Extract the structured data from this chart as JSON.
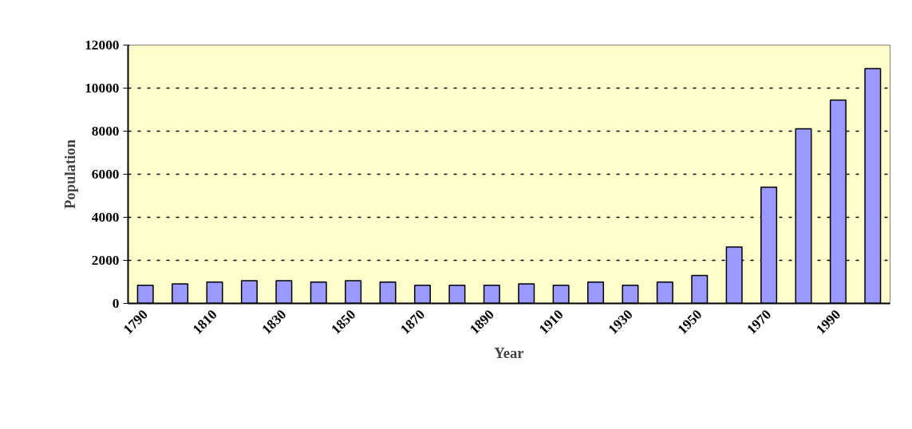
{
  "chart_data": {
    "type": "bar",
    "xlabel": "Year",
    "ylabel": "Population",
    "categories": [
      "1790",
      null,
      "1810",
      null,
      "1830",
      null,
      "1850",
      null,
      "1870",
      null,
      "1890",
      null,
      "1910",
      null,
      "1930",
      null,
      "1950",
      null,
      "1970",
      null,
      "1990",
      null
    ],
    "values": [
      840,
      910,
      990,
      1060,
      1060,
      990,
      1060,
      990,
      840,
      840,
      840,
      910,
      840,
      990,
      840,
      990,
      1300,
      2620,
      5400,
      8110,
      9440,
      10910
    ],
    "color": "#9999ff",
    "ylim": [
      0,
      12000
    ],
    "yticks": [
      0,
      2000,
      4000,
      6000,
      8000,
      10000,
      12000
    ],
    "grid": "y"
  }
}
